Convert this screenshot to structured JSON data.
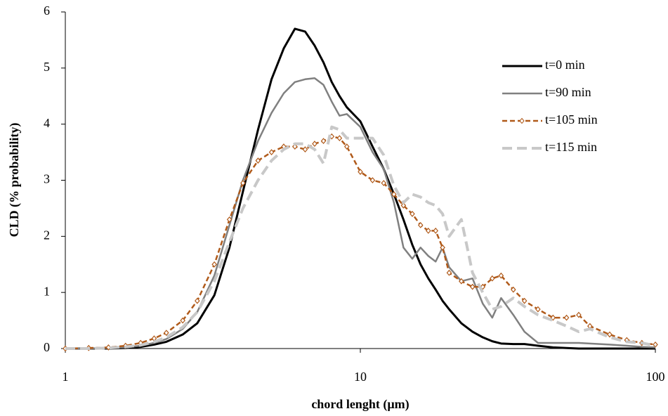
{
  "chart_data": {
    "type": "line",
    "xlabel": "chord lenght (µm)",
    "ylabel": "CLD (% probability)",
    "xscale": "log",
    "x": [
      1,
      1.2,
      1.4,
      1.6,
      1.8,
      2,
      2.2,
      2.5,
      2.8,
      3.2,
      3.6,
      4,
      4.5,
      5,
      5.5,
      6,
      6.5,
      7,
      7.5,
      8,
      8.5,
      9,
      10,
      11,
      12,
      13,
      14,
      15,
      16,
      17,
      18,
      19,
      20,
      22,
      24,
      26,
      28,
      30,
      33,
      36,
      40,
      45,
      50,
      55,
      60,
      70,
      80,
      90,
      100
    ],
    "series": [
      {
        "name": "t=0 min",
        "color": "#000000",
        "dash": "solid",
        "marker": false,
        "values": [
          0,
          0,
          0,
          0.01,
          0.03,
          0.07,
          0.12,
          0.25,
          0.45,
          0.95,
          1.8,
          2.8,
          3.9,
          4.8,
          5.35,
          5.7,
          5.65,
          5.4,
          5.1,
          4.75,
          4.5,
          4.3,
          4.05,
          3.6,
          3.2,
          2.75,
          2.3,
          1.85,
          1.5,
          1.25,
          1.05,
          0.85,
          0.7,
          0.45,
          0.3,
          0.2,
          0.13,
          0.09,
          0.08,
          0.08,
          0.05,
          0.02,
          0.01,
          0,
          0,
          0,
          0,
          0,
          0
        ]
      },
      {
        "name": "t=90 min",
        "color": "#808080",
        "dash": "solid",
        "marker": false,
        "values": [
          0,
          0,
          0.01,
          0.02,
          0.05,
          0.1,
          0.17,
          0.35,
          0.65,
          1.3,
          2.2,
          3.0,
          3.7,
          4.2,
          4.55,
          4.75,
          4.8,
          4.82,
          4.7,
          4.4,
          4.15,
          4.18,
          3.95,
          3.5,
          3.2,
          2.6,
          1.8,
          1.6,
          1.8,
          1.65,
          1.55,
          1.8,
          1.45,
          1.2,
          1.25,
          0.8,
          0.55,
          0.9,
          0.6,
          0.3,
          0.1,
          0.1,
          0.1,
          0.1,
          0.09,
          0.07,
          0.05,
          0.03,
          0.02
        ]
      },
      {
        "name": "t=105 min",
        "color": "#b05a1a",
        "dash": "short",
        "marker": true,
        "values": [
          0,
          0.01,
          0.02,
          0.05,
          0.1,
          0.18,
          0.28,
          0.5,
          0.85,
          1.5,
          2.3,
          2.95,
          3.35,
          3.5,
          3.6,
          3.6,
          3.55,
          3.65,
          3.7,
          3.78,
          3.75,
          3.6,
          3.15,
          3.0,
          2.95,
          2.75,
          2.55,
          2.4,
          2.2,
          2.1,
          2.1,
          1.8,
          1.35,
          1.2,
          1.1,
          1.1,
          1.25,
          1.3,
          1.05,
          0.85,
          0.7,
          0.55,
          0.55,
          0.6,
          0.4,
          0.25,
          0.15,
          0.1,
          0.07
        ]
      },
      {
        "name": "t=115 min",
        "color": "#c8c8c8",
        "dash": "long",
        "marker": false,
        "values": [
          0,
          0,
          0.01,
          0.03,
          0.06,
          0.12,
          0.2,
          0.38,
          0.65,
          1.2,
          1.9,
          2.5,
          3.0,
          3.35,
          3.55,
          3.65,
          3.65,
          3.55,
          3.3,
          3.95,
          3.9,
          3.75,
          3.75,
          3.75,
          3.45,
          2.9,
          2.6,
          2.75,
          2.7,
          2.6,
          2.55,
          2.4,
          2.0,
          2.3,
          1.35,
          1.0,
          0.7,
          0.75,
          0.9,
          0.75,
          0.6,
          0.5,
          0.4,
          0.3,
          0.35,
          0.2,
          0.12,
          0.1,
          0.05
        ]
      }
    ],
    "xlim": [
      1,
      100
    ],
    "xticks": [
      1,
      10,
      100
    ],
    "ylim": [
      0,
      6
    ],
    "yticks": [
      0,
      1,
      2,
      3,
      4,
      5,
      6
    ],
    "legend": "upper right"
  }
}
